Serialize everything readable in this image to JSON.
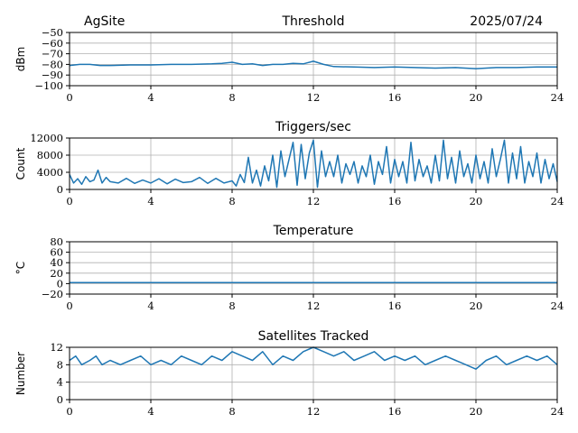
{
  "header": {
    "site": "AgSite",
    "date": "2025/07/24"
  },
  "colors": {
    "series": "#1f77b4"
  },
  "chart_data": [
    {
      "type": "line",
      "title": "Threshold",
      "ylabel": "dBm",
      "xlim": [
        0,
        24
      ],
      "ylim": [
        -100,
        -50
      ],
      "xticks": [
        "0",
        "4",
        "8",
        "12",
        "16",
        "20",
        "24"
      ],
      "yticks": [
        "−50",
        "−60",
        "−70",
        "−80",
        "−90",
        "−100"
      ],
      "ytick_values": [
        -50,
        -60,
        -70,
        -80,
        -90,
        -100
      ],
      "grid": true,
      "x": [
        0,
        0.5,
        1,
        1.5,
        2,
        3,
        4,
        5,
        6,
        7,
        7.5,
        8,
        8.5,
        9,
        9.5,
        10,
        10.5,
        11,
        11.5,
        12,
        12.5,
        13,
        14,
        15,
        16,
        17,
        18,
        19,
        20,
        21,
        22,
        23,
        24
      ],
      "series": [
        {
          "values": [
            -81,
            -80,
            -80,
            -81,
            -81,
            -80.5,
            -80.5,
            -80,
            -80,
            -79.5,
            -79,
            -78,
            -80,
            -79.5,
            -81,
            -80,
            -80,
            -79,
            -79.5,
            -77,
            -80,
            -82,
            -82.5,
            -83,
            -82.5,
            -83,
            -83.5,
            -83,
            -84,
            -83,
            -83,
            -82.5,
            -82.5
          ]
        }
      ]
    },
    {
      "type": "line",
      "title": "Triggers/sec",
      "ylabel": "Count",
      "xlim": [
        0,
        24
      ],
      "ylim": [
        0,
        12000
      ],
      "xticks": [
        "0",
        "4",
        "8",
        "12",
        "16",
        "20",
        "24"
      ],
      "yticks": [
        "12000",
        "8000",
        "4000",
        "0"
      ],
      "ytick_values": [
        12000,
        8000,
        4000,
        0
      ],
      "grid": true,
      "x": [
        0,
        0.2,
        0.4,
        0.6,
        0.8,
        1,
        1.2,
        1.4,
        1.6,
        1.8,
        2,
        2.4,
        2.8,
        3.2,
        3.6,
        4,
        4.4,
        4.8,
        5.2,
        5.6,
        6,
        6.4,
        6.8,
        7.2,
        7.6,
        8,
        8.2,
        8.4,
        8.6,
        8.8,
        9,
        9.2,
        9.4,
        9.6,
        9.8,
        10,
        10.2,
        10.4,
        10.6,
        10.8,
        11,
        11.2,
        11.4,
        11.6,
        11.8,
        12,
        12.2,
        12.4,
        12.6,
        12.8,
        13,
        13.2,
        13.4,
        13.6,
        13.8,
        14,
        14.2,
        14.4,
        14.6,
        14.8,
        15,
        15.2,
        15.4,
        15.6,
        15.8,
        16,
        16.2,
        16.4,
        16.6,
        16.8,
        17,
        17.2,
        17.4,
        17.6,
        17.8,
        18,
        18.2,
        18.4,
        18.6,
        18.8,
        19,
        19.2,
        19.4,
        19.6,
        19.8,
        20,
        20.2,
        20.4,
        20.6,
        20.8,
        21,
        21.2,
        21.4,
        21.6,
        21.8,
        22,
        22.2,
        22.4,
        22.6,
        22.8,
        23,
        23.2,
        23.4,
        23.6,
        23.8,
        24
      ],
      "series": [
        {
          "values": [
            3500,
            1500,
            2500,
            1200,
            3000,
            1800,
            2200,
            4500,
            1500,
            2800,
            1800,
            1500,
            2600,
            1400,
            2200,
            1500,
            2500,
            1300,
            2400,
            1600,
            1800,
            2800,
            1400,
            2600,
            1500,
            2000,
            800,
            3500,
            1600,
            7500,
            1500,
            4500,
            800,
            5500,
            2000,
            8000,
            500,
            9000,
            3000,
            7000,
            11000,
            1000,
            10500,
            2500,
            8500,
            11500,
            500,
            9000,
            3000,
            6500,
            3000,
            8000,
            1500,
            6000,
            3500,
            6500,
            1500,
            5500,
            3000,
            8000,
            1200,
            6500,
            3500,
            10000,
            1500,
            7000,
            3000,
            6500,
            1500,
            11000,
            2000,
            7000,
            3000,
            5500,
            1500,
            8000,
            2000,
            11500,
            2500,
            7500,
            1500,
            9000,
            3000,
            6000,
            1500,
            8000,
            2500,
            6500,
            1500,
            9500,
            3000,
            7000,
            11500,
            1500,
            8500,
            2500,
            10000,
            1500,
            6500,
            3000,
            8500,
            1500,
            7000,
            2500,
            6000,
            1800
          ]
        }
      ]
    },
    {
      "type": "line",
      "title": "Temperature",
      "ylabel": "°C",
      "xlim": [
        0,
        24
      ],
      "ylim": [
        -20,
        80
      ],
      "xticks": [
        "0",
        "4",
        "8",
        "12",
        "16",
        "20",
        "24"
      ],
      "yticks": [
        "80",
        "60",
        "40",
        "20",
        "0",
        "−20"
      ],
      "ytick_values": [
        80,
        60,
        40,
        20,
        0,
        -20
      ],
      "grid": true,
      "x": [
        0,
        24
      ],
      "series": [
        {
          "values": [
            2,
            2
          ]
        }
      ]
    },
    {
      "type": "line",
      "title": "Satellites Tracked",
      "ylabel": "Number",
      "xlim": [
        0,
        24
      ],
      "ylim": [
        0,
        12
      ],
      "xticks": [
        "0",
        "4",
        "8",
        "12",
        "16",
        "20",
        "24"
      ],
      "yticks": [
        "12",
        "8",
        "4",
        "0"
      ],
      "ytick_values": [
        12,
        8,
        4,
        0
      ],
      "grid": true,
      "x": [
        0,
        0.3,
        0.6,
        1,
        1.3,
        1.6,
        2,
        2.5,
        3,
        3.5,
        4,
        4.5,
        5,
        5.5,
        6,
        6.5,
        7,
        7.5,
        8,
        8.5,
        9,
        9.5,
        10,
        10.5,
        11,
        11.5,
        12,
        12.5,
        13,
        13.5,
        14,
        14.5,
        15,
        15.5,
        16,
        16.5,
        17,
        17.5,
        18,
        18.5,
        19,
        19.5,
        20,
        20.5,
        21,
        21.5,
        22,
        22.5,
        23,
        23.5,
        24
      ],
      "series": [
        {
          "values": [
            9,
            10,
            8,
            9,
            10,
            8,
            9,
            8,
            9,
            10,
            8,
            9,
            8,
            10,
            9,
            8,
            10,
            9,
            11,
            10,
            9,
            11,
            8,
            10,
            9,
            11,
            12,
            11,
            10,
            11,
            9,
            10,
            11,
            9,
            10,
            9,
            10,
            8,
            9,
            10,
            9,
            8,
            7,
            9,
            10,
            8,
            9,
            10,
            9,
            10,
            8
          ]
        }
      ]
    }
  ]
}
